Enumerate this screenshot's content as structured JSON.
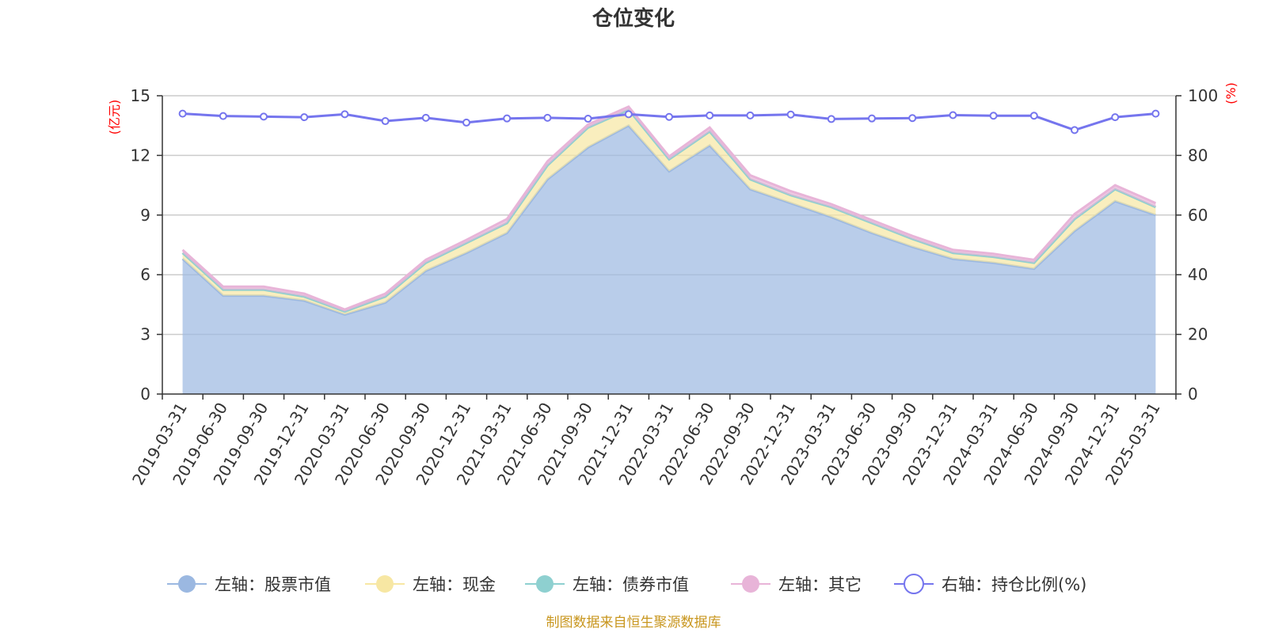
{
  "chart_data": {
    "type": "area",
    "title": "仓位变化",
    "left_axis_unit": "(亿元)",
    "right_axis_unit": "(%)",
    "ylim_left": [
      0,
      15
    ],
    "ylim_right": [
      0,
      100
    ],
    "yticks_left": [
      "0",
      "3",
      "6",
      "9",
      "12",
      "15"
    ],
    "yticks_right": [
      "0",
      "20",
      "40",
      "60",
      "80",
      "100"
    ],
    "categories": [
      "2019-03-31",
      "2019-06-30",
      "2019-09-30",
      "2019-12-31",
      "2020-03-31",
      "2020-06-30",
      "2020-09-30",
      "2020-12-31",
      "2021-03-31",
      "2021-06-30",
      "2021-09-30",
      "2021-12-31",
      "2022-03-31",
      "2022-06-30",
      "2022-09-30",
      "2022-12-31",
      "2023-03-31",
      "2023-06-30",
      "2023-09-30",
      "2023-12-31",
      "2024-03-31",
      "2024-06-30",
      "2024-09-30",
      "2024-12-31",
      "2025-03-31"
    ],
    "series": [
      {
        "name": "左轴：股票市值",
        "axis": "left",
        "stack": true,
        "color": "#9bb8e1",
        "values": [
          6.8,
          4.95,
          4.95,
          4.7,
          4.0,
          4.6,
          6.2,
          7.1,
          8.1,
          10.8,
          12.4,
          13.5,
          11.2,
          12.5,
          10.3,
          9.6,
          8.9,
          8.1,
          7.4,
          6.8,
          6.6,
          6.3,
          8.2,
          9.7,
          9.0
        ]
      },
      {
        "name": "左轴：现金",
        "axis": "left",
        "stack": true,
        "color": "#f7e7a3",
        "values": [
          0.3,
          0.3,
          0.3,
          0.2,
          0.15,
          0.3,
          0.4,
          0.5,
          0.5,
          0.7,
          1.0,
          0.8,
          0.6,
          0.7,
          0.5,
          0.4,
          0.5,
          0.5,
          0.4,
          0.3,
          0.3,
          0.3,
          0.6,
          0.6,
          0.4
        ]
      },
      {
        "name": "左轴：债券市值",
        "axis": "left",
        "stack": true,
        "color": "#8ed0d0",
        "values": [
          0,
          0,
          0,
          0,
          0,
          0,
          0,
          0,
          0,
          0,
          0,
          0,
          0,
          0,
          0,
          0,
          0,
          0,
          0,
          0,
          0,
          0,
          0,
          0,
          0
        ]
      },
      {
        "name": "左轴：其它",
        "axis": "left",
        "stack": true,
        "color": "#e8b4d8",
        "values": [
          0.15,
          0.15,
          0.15,
          0.15,
          0.1,
          0.15,
          0.15,
          0.15,
          0.2,
          0.2,
          0.15,
          0.15,
          0.15,
          0.2,
          0.2,
          0.2,
          0.15,
          0.15,
          0.15,
          0.15,
          0.15,
          0.15,
          0.25,
          0.2,
          0.2
        ]
      },
      {
        "name": "右轴：持仓比例(%)",
        "axis": "right",
        "stack": false,
        "color": "#7575ee",
        "values": [
          94,
          93.2,
          93,
          92.8,
          93.8,
          91.5,
          92.6,
          91,
          92.4,
          92.6,
          92.3,
          93.8,
          92.9,
          93.4,
          93.4,
          93.7,
          92.2,
          92.4,
          92.5,
          93.5,
          93.3,
          93.3,
          88.5,
          92.8,
          94
        ]
      }
    ],
    "legend_position": "bottom",
    "source_note": "制图数据来自恒生聚源数据库"
  }
}
